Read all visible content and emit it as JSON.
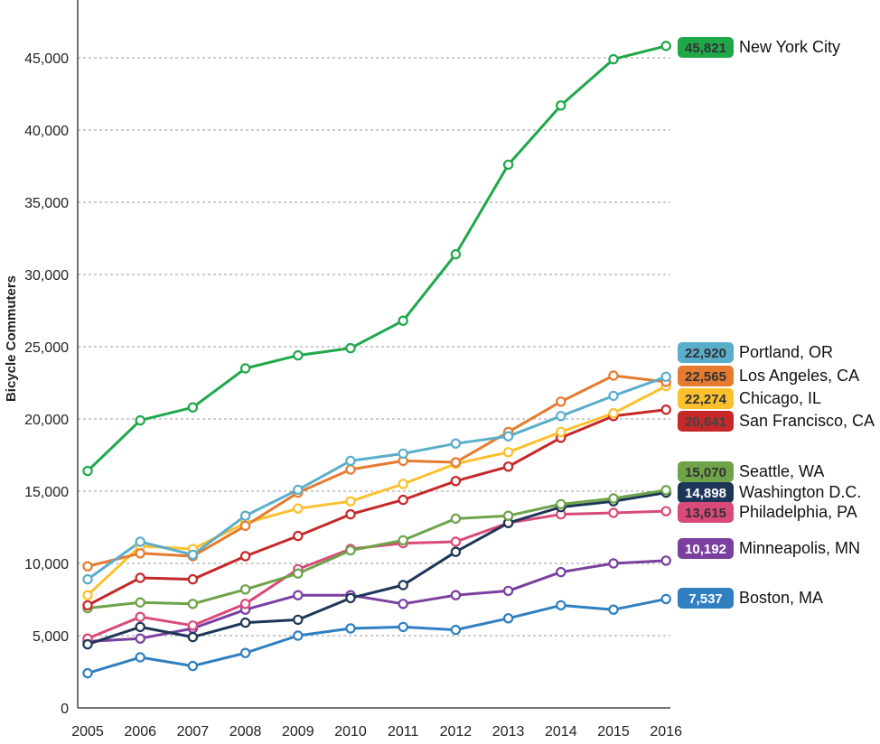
{
  "chart_data": {
    "type": "line",
    "title": "",
    "xlabel": "",
    "ylabel": "Bicycle Commuters",
    "x": [
      2005,
      2006,
      2007,
      2008,
      2009,
      2010,
      2011,
      2012,
      2013,
      2014,
      2015,
      2016
    ],
    "ylim": [
      0,
      50000
    ],
    "yticks": [
      0,
      5000,
      10000,
      15000,
      20000,
      25000,
      30000,
      35000,
      40000,
      45000
    ],
    "ytick_labels": [
      "0",
      "5,000",
      "10,000",
      "15,000",
      "20,000",
      "25,000",
      "30,000",
      "35,000",
      "40,000",
      "45,000"
    ],
    "grid": true,
    "legend": "end-labels-right",
    "series": [
      {
        "name": "New York City",
        "end_label": "45,821",
        "color": "#1fa84a",
        "text_color": "#333333",
        "values": [
          16400,
          19900,
          20800,
          23500,
          24400,
          24900,
          26800,
          31400,
          37600,
          41700,
          44900,
          45821
        ]
      },
      {
        "name": "Portland, OR",
        "end_label": "22,920",
        "color": "#5aaecb",
        "text_color": "#333333",
        "values": [
          8900,
          11500,
          10600,
          13300,
          15100,
          17100,
          17600,
          18300,
          18800,
          20200,
          21600,
          22920
        ]
      },
      {
        "name": "Los Angeles, CA",
        "end_label": "22,565",
        "color": "#e57b2e",
        "text_color": "#333333",
        "values": [
          9800,
          10700,
          10500,
          12600,
          14900,
          16500,
          17100,
          17000,
          19100,
          21200,
          23000,
          22565
        ]
      },
      {
        "name": "Chicago, IL",
        "end_label": "22,274",
        "color": "#fbc02d",
        "text_color": "#333333",
        "values": [
          7800,
          11200,
          11000,
          12800,
          13800,
          14300,
          15500,
          16900,
          17700,
          19100,
          20400,
          22274
        ]
      },
      {
        "name": "San Francisco, CA",
        "end_label": "20,641",
        "color": "#c62828",
        "text_color": "#444444",
        "values": [
          7100,
          9000,
          8900,
          10500,
          11900,
          13400,
          14400,
          15700,
          16700,
          18700,
          20200,
          20641
        ]
      },
      {
        "name": "Seattle, WA",
        "end_label": "15,070",
        "color": "#6ea34a",
        "text_color": "#333333",
        "values": [
          6900,
          7300,
          7200,
          8200,
          9300,
          10900,
          11600,
          13100,
          13300,
          14100,
          14500,
          15070
        ]
      },
      {
        "name": "Washington D.C.",
        "end_label": "14,898",
        "color": "#1d3557",
        "text_color": "#ffffff",
        "values": [
          4400,
          5600,
          4900,
          5900,
          6100,
          7600,
          8500,
          10800,
          12800,
          13900,
          14300,
          14898
        ]
      },
      {
        "name": "Philadelphia, PA",
        "end_label": "13,615",
        "color": "#d94a7a",
        "text_color": "#333333",
        "values": [
          4800,
          6300,
          5700,
          7200,
          9600,
          11000,
          11400,
          11500,
          12800,
          13400,
          13500,
          13615
        ]
      },
      {
        "name": "Minneapolis, MN",
        "end_label": "10,192",
        "color": "#7b3fa0",
        "text_color": "#ffffff",
        "values": [
          4600,
          4800,
          5500,
          6800,
          7800,
          7800,
          7200,
          7800,
          8100,
          9400,
          10000,
          10192
        ]
      },
      {
        "name": "Boston, MA",
        "end_label": "7,537",
        "color": "#2f7fc1",
        "text_color": "#ffffff",
        "values": [
          2400,
          3500,
          2900,
          3800,
          5000,
          5500,
          5600,
          5400,
          6200,
          7100,
          6800,
          7537
        ]
      }
    ]
  }
}
